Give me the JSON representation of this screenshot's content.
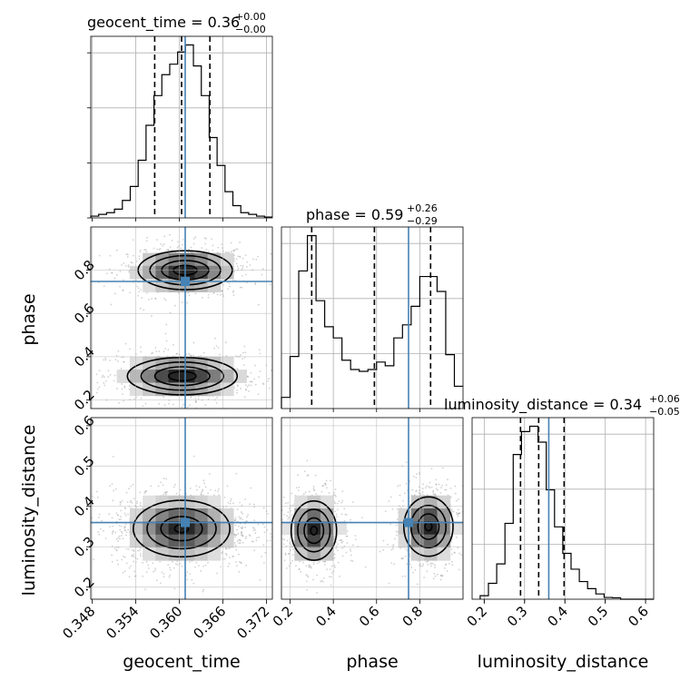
{
  "chart_data": {
    "type": "corner",
    "parameters": [
      "geocent_time",
      "phase",
      "luminosity_distance"
    ],
    "titles": [
      {
        "param": "geocent_time",
        "text": "geocent_time = 0.36",
        "sup": "+0.00",
        "sub": "−0.00"
      },
      {
        "param": "phase",
        "text": "phase = 0.59",
        "sup": "+0.26",
        "sub": "−0.29"
      },
      {
        "param": "luminosity_distance",
        "text": "luminosity_distance = 0.34",
        "sup": "+0.06",
        "sub": "−0.05"
      }
    ],
    "ranges": {
      "geocent_time": [
        0.3478,
        0.3728
      ],
      "phase": [
        0.16,
        1.0
      ],
      "luminosity_distance": [
        0.17,
        0.62
      ]
    },
    "ticks": {
      "geocent_time": {
        "values": [
          0.348,
          0.354,
          0.36,
          0.366,
          0.372
        ],
        "labels": [
          "0.348",
          "0.354",
          "0.360",
          "0.366",
          "0.372"
        ]
      },
      "phase": {
        "values": [
          0.2,
          0.4,
          0.6,
          0.8
        ],
        "labels": [
          "0.2",
          "0.4",
          "0.6",
          "0.8"
        ]
      },
      "luminosity_distance": {
        "values": [
          0.2,
          0.3,
          0.4,
          0.5,
          0.6
        ],
        "labels": [
          "0.2",
          "0.3",
          "0.4",
          "0.5",
          "0.6"
        ]
      }
    },
    "truths": {
      "geocent_time": 0.3608,
      "phase": 0.748,
      "luminosity_distance": 0.36
    },
    "quantiles": {
      "geocent_time": [
        0.3566,
        0.3603,
        0.3642
      ],
      "phase": [
        0.3,
        0.59,
        0.85
      ],
      "luminosity_distance": [
        0.29,
        0.335,
        0.398
      ]
    },
    "histograms": {
      "geocent_time": {
        "edges_start": 0.3478,
        "edges_end": 0.3728,
        "counts": [
          0.01,
          0.02,
          0.03,
          0.05,
          0.1,
          0.18,
          0.33,
          0.53,
          0.7,
          0.82,
          0.88,
          0.95,
          0.99,
          0.87,
          0.7,
          0.46,
          0.3,
          0.15,
          0.07,
          0.03,
          0.02,
          0.01,
          0.005
        ]
      },
      "phase": {
        "edges_start": 0.16,
        "edges_end": 1.0,
        "counts": [
          0.06,
          0.28,
          0.74,
          0.93,
          0.58,
          0.44,
          0.38,
          0.26,
          0.21,
          0.2,
          0.21,
          0.25,
          0.23,
          0.38,
          0.45,
          0.55,
          0.71,
          0.71,
          0.63,
          0.29,
          0.12
        ]
      },
      "luminosity_distance": {
        "edges_start": 0.19,
        "edges_end": 0.62,
        "counts": [
          0.02,
          0.09,
          0.2,
          0.43,
          0.82,
          0.95,
          0.98,
          0.89,
          0.62,
          0.41,
          0.26,
          0.17,
          0.1,
          0.06,
          0.03,
          0.01,
          0.008,
          0.0,
          0.0,
          0.0,
          0.0
        ]
      }
    },
    "contours_2d": {
      "phase_vs_geocent_time": {
        "x": "geocent_time",
        "y": "phase",
        "modes": [
          {
            "center": [
              0.3608,
              0.8
            ],
            "widths": [
              0.0036,
              0.05
            ],
            "levels": [
              0.4,
              0.85,
              1.3,
              1.75
            ]
          },
          {
            "center": [
              0.3604,
              0.31
            ],
            "widths": [
              0.0042,
              0.048
            ],
            "levels": [
              0.4,
              0.85,
              1.3,
              1.75
            ]
          }
        ]
      },
      "luminosity_distance_vs_geocent_time": {
        "x": "geocent_time",
        "y": "luminosity_distance",
        "modes": [
          {
            "center": [
              0.3603,
              0.345
            ],
            "widths": [
              0.0038,
              0.04
            ],
            "levels": [
              0.45,
              0.95,
              1.45,
              1.95
            ]
          }
        ]
      },
      "luminosity_distance_vs_phase": {
        "x": "phase",
        "y": "luminosity_distance",
        "modes": [
          {
            "center": [
              0.31,
              0.34
            ],
            "widths": [
              0.06,
              0.042
            ],
            "levels": [
              0.45,
              0.95,
              1.45,
              1.95
            ]
          },
          {
            "center": [
              0.84,
              0.35
            ],
            "widths": [
              0.065,
              0.042
            ],
            "levels": [
              0.45,
              0.95,
              1.45,
              1.95
            ]
          }
        ]
      }
    },
    "grid": true,
    "colors": {
      "truth": "#4682b4",
      "hist": "#000000",
      "contour": "#000000",
      "grid": "#b0b0b0",
      "scatter": "#9a9a9a"
    }
  }
}
